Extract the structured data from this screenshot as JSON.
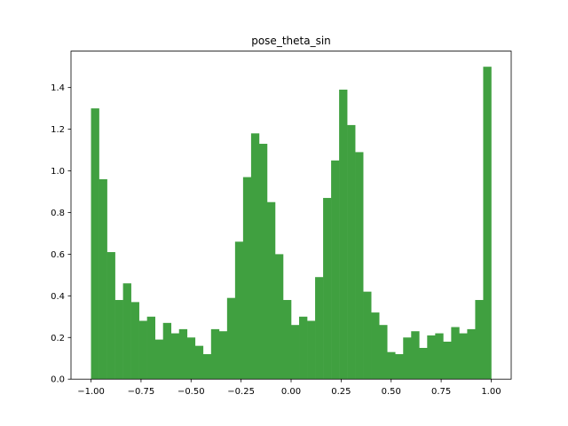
{
  "chart_data": {
    "type": "bar",
    "title": "pose_theta_sin",
    "xlabel": "",
    "ylabel": "",
    "xlim": [
      -1.1,
      1.1
    ],
    "ylim": [
      0,
      1.575
    ],
    "x_ticks": [
      -1.0,
      -0.75,
      -0.5,
      -0.25,
      0.0,
      0.25,
      0.5,
      0.75,
      1.0
    ],
    "x_tick_labels": [
      "−1.00",
      "−0.75",
      "−0.50",
      "−0.25",
      "0.00",
      "0.25",
      "0.50",
      "0.75",
      "1.00"
    ],
    "y_ticks": [
      0.0,
      0.2,
      0.4,
      0.6,
      0.8,
      1.0,
      1.2,
      1.4
    ],
    "y_tick_labels": [
      "0.0",
      "0.2",
      "0.4",
      "0.6",
      "0.8",
      "1.0",
      "1.2",
      "1.4"
    ],
    "bin_range": [
      -1.0,
      1.0
    ],
    "bar_color": "#40a040",
    "values": [
      1.3,
      0.96,
      0.61,
      0.38,
      0.46,
      0.37,
      0.28,
      0.3,
      0.19,
      0.27,
      0.22,
      0.24,
      0.2,
      0.16,
      0.12,
      0.24,
      0.23,
      0.39,
      0.66,
      0.97,
      1.18,
      1.13,
      0.85,
      0.6,
      0.38,
      0.26,
      0.3,
      0.28,
      0.49,
      0.87,
      1.05,
      1.39,
      1.22,
      1.09,
      0.42,
      0.32,
      0.26,
      0.13,
      0.12,
      0.2,
      0.23,
      0.15,
      0.21,
      0.22,
      0.18,
      0.25,
      0.22,
      0.24,
      0.38,
      1.5
    ],
    "grid": false,
    "legend": "none"
  }
}
